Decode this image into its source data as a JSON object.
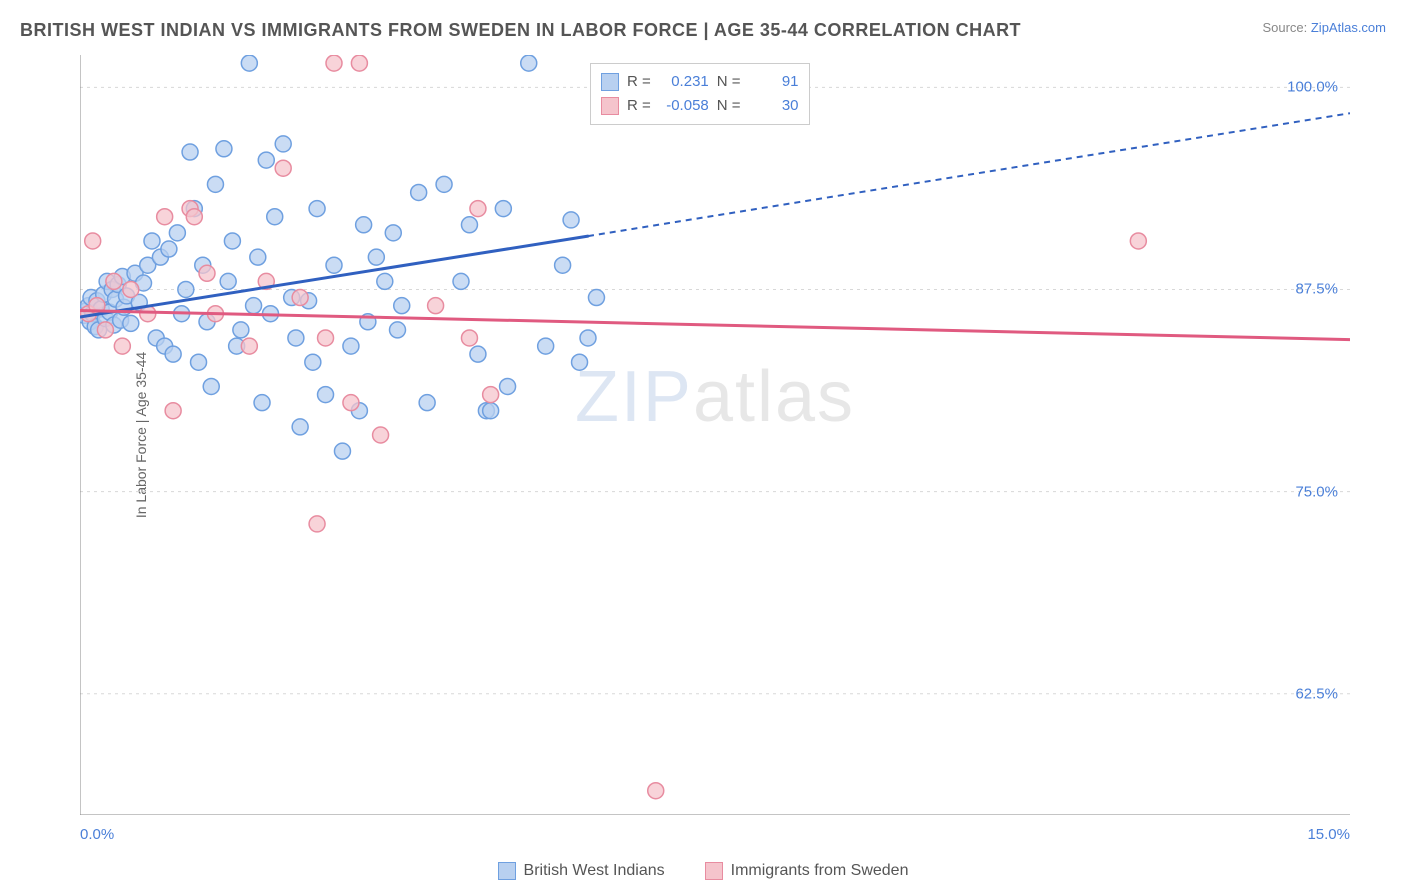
{
  "header": {
    "title": "BRITISH WEST INDIAN VS IMMIGRANTS FROM SWEDEN IN LABOR FORCE | AGE 35-44 CORRELATION CHART",
    "source_prefix": "Source: ",
    "source_link": "ZipAtlas.com"
  },
  "axes": {
    "y_label": "In Labor Force | Age 35-44",
    "x_min": 0.0,
    "x_max": 15.0,
    "y_min": 55.0,
    "y_max": 102.0,
    "y_ticks": [
      62.5,
      75.0,
      87.5,
      100.0
    ],
    "y_tick_labels": [
      "62.5%",
      "75.0%",
      "87.5%",
      "100.0%"
    ],
    "x_tick_labels": {
      "left": "0.0%",
      "right": "15.0%"
    },
    "x_minor_ticks": [
      1.25,
      2.5,
      3.75,
      5.0,
      6.25,
      7.5,
      8.75,
      10.0,
      11.25,
      12.5,
      13.75
    ],
    "grid_color": "#d8d8d8",
    "axis_color": "#888888",
    "tick_label_color": "#4a7fd8",
    "tick_label_fontsize": 15
  },
  "series": [
    {
      "name": "British West Indians",
      "color_fill": "#b8d0f0",
      "color_stroke": "#6fa0e0",
      "trend_color": "#3060c0",
      "R": "0.231",
      "N": "91",
      "trend": {
        "x1": 0.0,
        "y1": 85.8,
        "x2_solid": 6.0,
        "y2_solid": 90.8,
        "x2_dash": 15.0,
        "y2_dash": 98.4
      },
      "points": [
        [
          0.05,
          85.9
        ],
        [
          0.08,
          86.2
        ],
        [
          0.1,
          86.5
        ],
        [
          0.12,
          85.5
        ],
        [
          0.13,
          87.0
        ],
        [
          0.15,
          86.0
        ],
        [
          0.18,
          85.2
        ],
        [
          0.2,
          86.8
        ],
        [
          0.22,
          85.0
        ],
        [
          0.25,
          86.3
        ],
        [
          0.28,
          87.2
        ],
        [
          0.3,
          85.7
        ],
        [
          0.32,
          88.0
        ],
        [
          0.35,
          86.1
        ],
        [
          0.38,
          87.5
        ],
        [
          0.4,
          85.3
        ],
        [
          0.42,
          86.9
        ],
        [
          0.45,
          87.8
        ],
        [
          0.48,
          85.6
        ],
        [
          0.5,
          88.3
        ],
        [
          0.52,
          86.4
        ],
        [
          0.55,
          87.1
        ],
        [
          0.6,
          85.4
        ],
        [
          0.65,
          88.5
        ],
        [
          0.7,
          86.7
        ],
        [
          0.75,
          87.9
        ],
        [
          0.8,
          89.0
        ],
        [
          0.85,
          90.5
        ],
        [
          0.9,
          84.5
        ],
        [
          0.95,
          89.5
        ],
        [
          1.0,
          84.0
        ],
        [
          1.05,
          90.0
        ],
        [
          1.1,
          83.5
        ],
        [
          1.15,
          91.0
        ],
        [
          1.2,
          86.0
        ],
        [
          1.25,
          87.5
        ],
        [
          1.3,
          96.0
        ],
        [
          1.35,
          92.5
        ],
        [
          1.4,
          83.0
        ],
        [
          1.45,
          89.0
        ],
        [
          1.5,
          85.5
        ],
        [
          1.55,
          81.5
        ],
        [
          1.6,
          94.0
        ],
        [
          1.7,
          96.2
        ],
        [
          1.75,
          88.0
        ],
        [
          1.8,
          90.5
        ],
        [
          1.85,
          84.0
        ],
        [
          1.9,
          85.0
        ],
        [
          2.0,
          101.5
        ],
        [
          2.05,
          86.5
        ],
        [
          2.1,
          89.5
        ],
        [
          2.15,
          80.5
        ],
        [
          2.2,
          95.5
        ],
        [
          2.25,
          86.0
        ],
        [
          2.3,
          92.0
        ],
        [
          2.4,
          96.5
        ],
        [
          2.5,
          87.0
        ],
        [
          2.55,
          84.5
        ],
        [
          2.6,
          79.0
        ],
        [
          2.7,
          86.8
        ],
        [
          2.75,
          83.0
        ],
        [
          2.8,
          92.5
        ],
        [
          2.9,
          81.0
        ],
        [
          3.0,
          89.0
        ],
        [
          3.1,
          77.5
        ],
        [
          3.2,
          84.0
        ],
        [
          3.3,
          80.0
        ],
        [
          3.35,
          91.5
        ],
        [
          3.4,
          85.5
        ],
        [
          3.5,
          89.5
        ],
        [
          3.6,
          88.0
        ],
        [
          3.7,
          91.0
        ],
        [
          3.75,
          85.0
        ],
        [
          3.8,
          86.5
        ],
        [
          4.0,
          93.5
        ],
        [
          4.1,
          80.5
        ],
        [
          4.3,
          94.0
        ],
        [
          4.5,
          88.0
        ],
        [
          4.6,
          91.5
        ],
        [
          4.7,
          83.5
        ],
        [
          4.8,
          80.0
        ],
        [
          4.85,
          80.0
        ],
        [
          5.0,
          92.5
        ],
        [
          5.05,
          81.5
        ],
        [
          5.3,
          101.5
        ],
        [
          5.5,
          84.0
        ],
        [
          5.7,
          89.0
        ],
        [
          5.8,
          91.8
        ],
        [
          5.9,
          83.0
        ],
        [
          6.0,
          84.5
        ],
        [
          6.1,
          87.0
        ]
      ]
    },
    {
      "name": "Immigrants from Sweden",
      "color_fill": "#f5c4cc",
      "color_stroke": "#e88ca0",
      "trend_color": "#e05a80",
      "R": "-0.058",
      "N": "30",
      "trend": {
        "x1": 0.0,
        "y1": 86.2,
        "x2_solid": 15.0,
        "y2_solid": 84.4,
        "x2_dash": 15.0,
        "y2_dash": 84.4
      },
      "points": [
        [
          0.1,
          86.0
        ],
        [
          0.15,
          90.5
        ],
        [
          0.2,
          86.5
        ],
        [
          0.3,
          85.0
        ],
        [
          0.4,
          88.0
        ],
        [
          0.5,
          84.0
        ],
        [
          0.6,
          87.5
        ],
        [
          0.8,
          86.0
        ],
        [
          1.0,
          92.0
        ],
        [
          1.1,
          80.0
        ],
        [
          1.3,
          92.5
        ],
        [
          1.35,
          92.0
        ],
        [
          1.5,
          88.5
        ],
        [
          1.6,
          86.0
        ],
        [
          2.0,
          84.0
        ],
        [
          2.2,
          88.0
        ],
        [
          2.4,
          95.0
        ],
        [
          2.6,
          87.0
        ],
        [
          2.8,
          73.0
        ],
        [
          2.9,
          84.5
        ],
        [
          3.0,
          101.5
        ],
        [
          3.2,
          80.5
        ],
        [
          3.3,
          101.5
        ],
        [
          3.55,
          78.5
        ],
        [
          4.2,
          86.5
        ],
        [
          4.6,
          84.5
        ],
        [
          4.7,
          92.5
        ],
        [
          4.85,
          81.0
        ],
        [
          6.8,
          56.5
        ],
        [
          12.5,
          90.5
        ]
      ]
    }
  ],
  "legend_stats": {
    "R_label": "R =",
    "N_label": "N ="
  },
  "bottom_legend": {
    "items": [
      "British West Indians",
      "Immigrants from Sweden"
    ]
  },
  "watermark": {
    "part1": "ZIP",
    "part2": "atlas"
  },
  "style": {
    "marker_radius": 8,
    "marker_stroke_width": 1.5,
    "marker_opacity": 0.75,
    "trend_width_solid": 3,
    "trend_width_dash": 2,
    "dash_pattern": "6 5"
  }
}
